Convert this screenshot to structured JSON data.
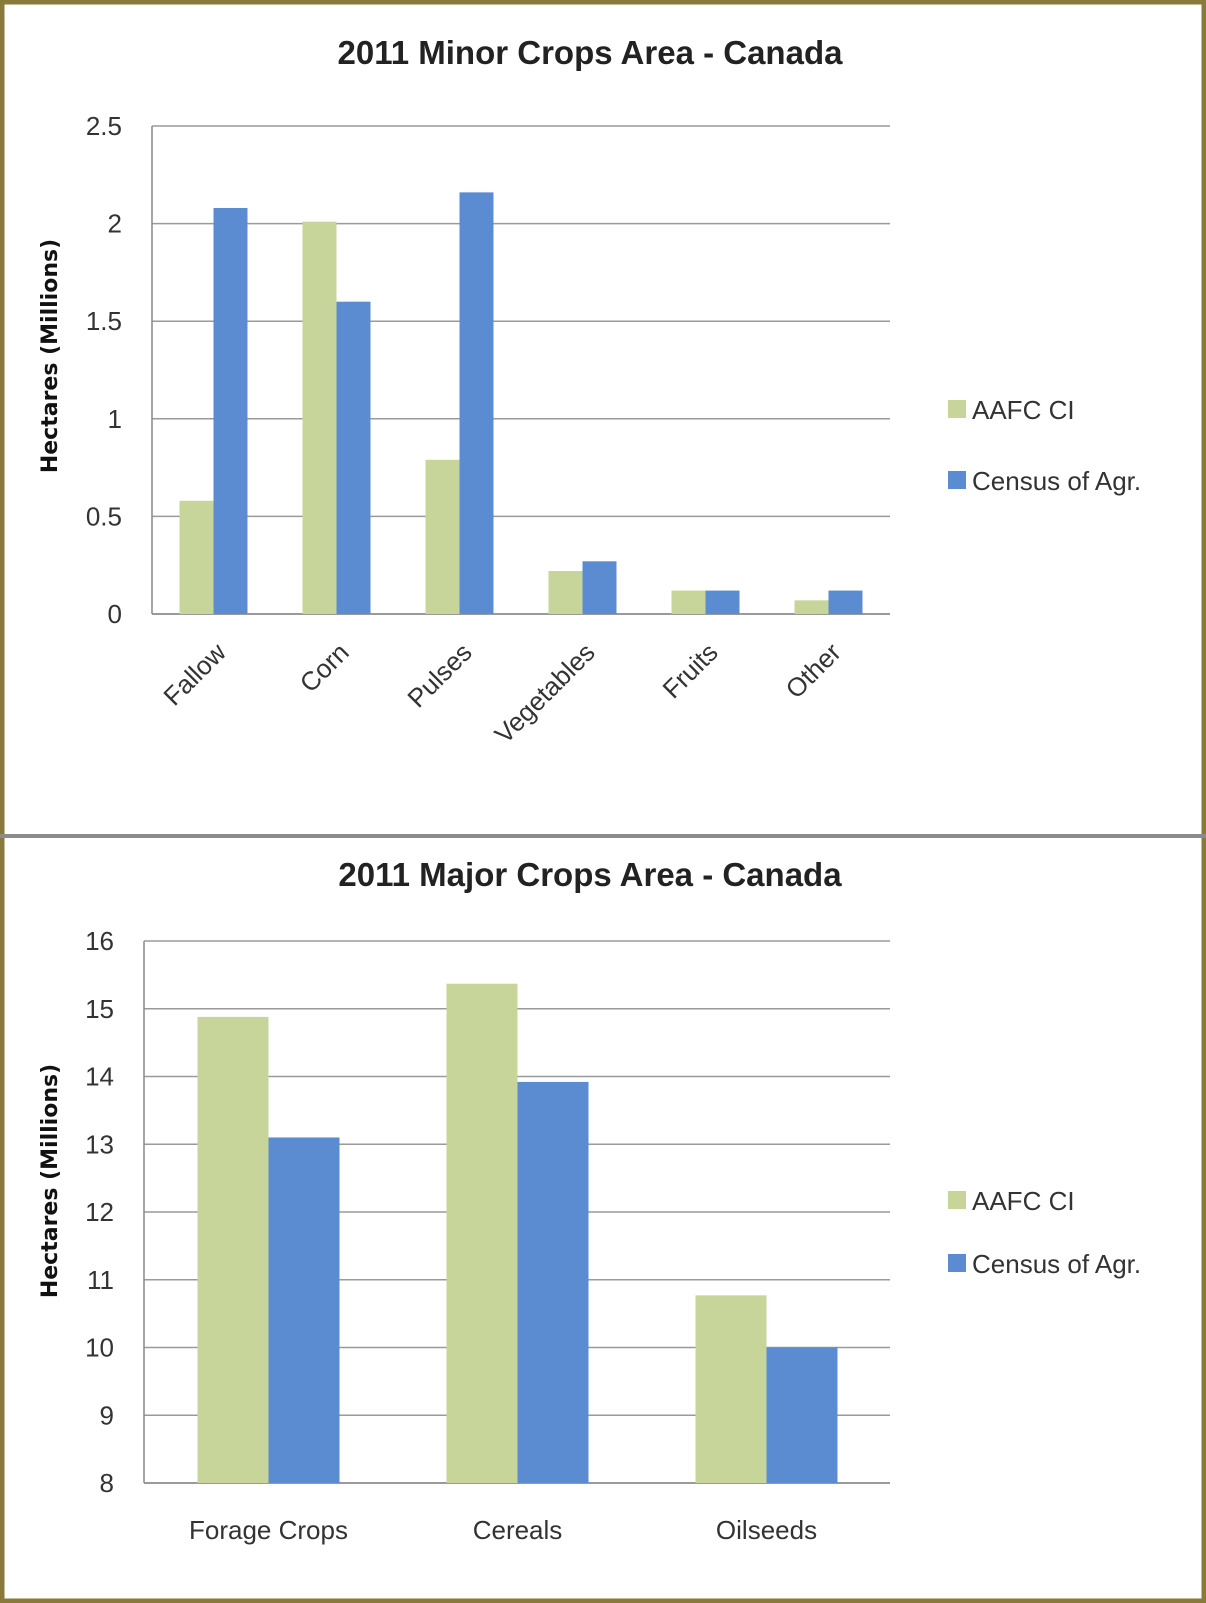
{
  "colors": {
    "border": "#8a7a3a",
    "aafc": "#c8d59a",
    "census": "#5b8bd0",
    "grid": "#9a9a9a"
  },
  "chart_data": [
    {
      "type": "bar",
      "title": "2011 Minor Crops Area - Canada",
      "xlabel": "",
      "ylabel": "Hectares (Millions)",
      "ylim": [
        0,
        2.5
      ],
      "yticks": [
        "0",
        "0.5",
        "1",
        "1.5",
        "2",
        "2.5"
      ],
      "grid": true,
      "legend_position": "right",
      "categories": [
        "Fallow",
        "Corn",
        "Pulses",
        "Vegetables",
        "Fruits",
        "Other"
      ],
      "series": [
        {
          "name": "AAFC CI",
          "values": [
            0.58,
            2.01,
            0.79,
            0.22,
            0.12,
            0.07
          ]
        },
        {
          "name": "Census of Agr.",
          "values": [
            2.08,
            1.6,
            2.16,
            0.27,
            0.12,
            0.12
          ]
        }
      ]
    },
    {
      "type": "bar",
      "title": "2011 Major Crops Area - Canada",
      "xlabel": "",
      "ylabel": "Hectares (Millions)",
      "ylim": [
        8,
        16
      ],
      "yticks": [
        "8",
        "9",
        "10",
        "11",
        "12",
        "13",
        "14",
        "15",
        "16"
      ],
      "grid": true,
      "legend_position": "right",
      "categories": [
        "Forage Crops",
        "Cereals",
        "Oilseeds"
      ],
      "series": [
        {
          "name": "AAFC CI",
          "values": [
            14.88,
            15.37,
            10.77
          ]
        },
        {
          "name": "Census of Agr.",
          "values": [
            13.1,
            13.92,
            10.0
          ]
        }
      ]
    }
  ]
}
